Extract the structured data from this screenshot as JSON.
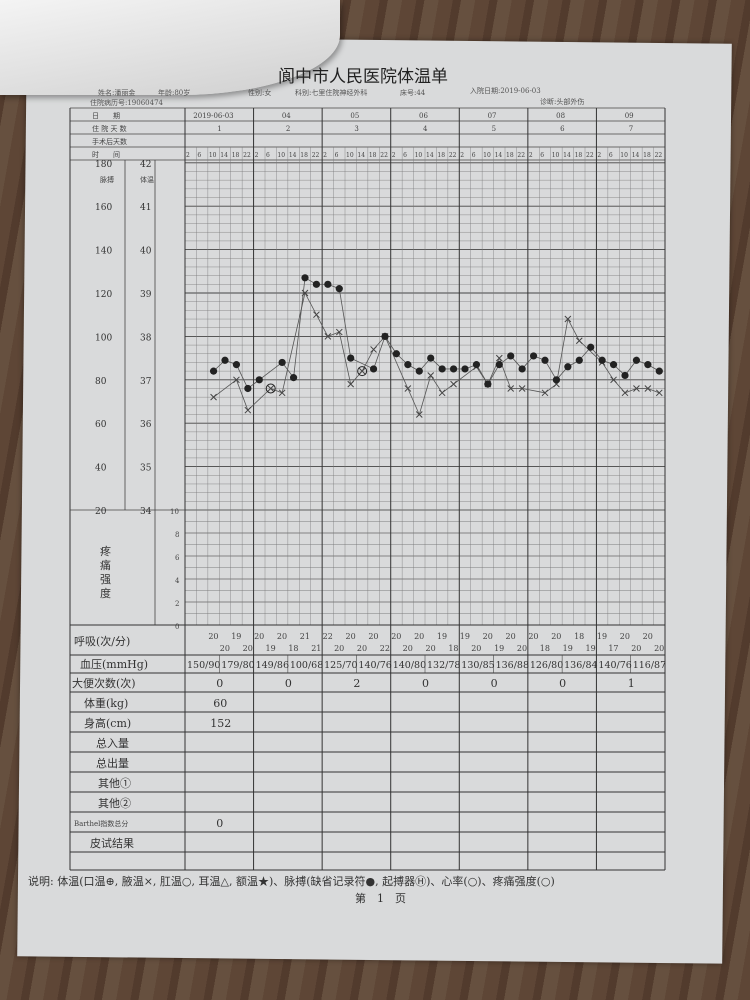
{
  "document": {
    "title": "阆中市人民医院体温单",
    "info": {
      "name": "姓名:潘丽金",
      "age": "年龄:80岁",
      "gender": "性别:女",
      "department": "科别:七里住院神经外科",
      "bed": "床号:44",
      "admission_date": "入院日期:2019-06-03",
      "record_no": "住院病历号:19060474",
      "diagnosis": "诊断:头部外伤"
    },
    "header_labels": {
      "date": "日　　期",
      "hospital_days": "住 院 天 数",
      "post_op_days": "手术后天数",
      "time": "时　　间",
      "pulse": "脉搏",
      "temperature": "体温"
    },
    "dates": [
      "2019-06-03",
      "04",
      "05",
      "06",
      "07",
      "08",
      "09"
    ],
    "hospital_days": [
      "1",
      "2",
      "3",
      "4",
      "5",
      "6",
      "7"
    ],
    "time_slots": [
      "2",
      "6",
      "10",
      "14",
      "18",
      "22"
    ],
    "pulse_axis": [
      "180",
      "160",
      "140",
      "120",
      "100",
      "80",
      "60",
      "40",
      "20"
    ],
    "temp_axis": [
      "42",
      "41",
      "40",
      "39",
      "38",
      "37",
      "36",
      "35",
      "34"
    ],
    "pain_axis": [
      "10",
      "8",
      "6",
      "4",
      "2",
      "0"
    ],
    "pain_label": "疼痛强度",
    "rows": {
      "respiration": "呼吸(次/分)",
      "blood_pressure": "血压(mmHg)",
      "stool": "大便次数(次)",
      "weight": "体重(kg)",
      "height": "身高(cm)",
      "intake": "总入量",
      "output": "总出量",
      "other1": "其他①",
      "other2": "其他②",
      "barthel": "Barthel指数总分",
      "skin_test": "皮试结果"
    },
    "respiration": [
      [
        "",
        "",
        "20",
        "20",
        "19",
        "20"
      ],
      [
        "20",
        "19",
        "20",
        "18",
        "21",
        "21"
      ],
      [
        "22",
        "20",
        "20",
        "20",
        "20",
        "22"
      ],
      [
        "20",
        "20",
        "20",
        "20",
        "19",
        "18"
      ],
      [
        "19",
        "20",
        "20",
        "19",
        "20",
        "20"
      ],
      [
        "20",
        "18",
        "20",
        "19",
        "18",
        "19"
      ],
      [
        "19",
        "17",
        "20",
        "20",
        "20",
        "20"
      ]
    ],
    "blood_pressure": [
      "150/90",
      "179/80",
      "149/86",
      "100/68",
      "125/70",
      "140/76",
      "140/80",
      "132/78",
      "130/85",
      "136/88",
      "126/80",
      "136/84",
      "140/76",
      "116/87"
    ],
    "stool": [
      "0",
      "0",
      "2",
      "0",
      "0",
      "0",
      "1"
    ],
    "weight": [
      "60",
      "",
      "",
      "",
      "",
      "",
      ""
    ],
    "height": [
      "152",
      "",
      "",
      "",
      "",
      "",
      ""
    ],
    "barthel": [
      "0",
      "",
      "",
      "",
      "",
      "",
      ""
    ],
    "legend": "说明: 体温(口温⊕, 腋温×, 肛温○, 耳温△, 额温★)、脉搏(缺省记录符●, 起搏器Ⓗ)、心率(○)、疼痛强度(○)",
    "page": "第　1　页"
  },
  "chart_data": {
    "type": "line",
    "x_label_note": "7 days × 6 time slots (2,6,10,14,18,22)",
    "temp_ylim": [
      34,
      42
    ],
    "pulse_ylim": [
      20,
      180
    ],
    "pain_ylim": [
      0,
      10
    ],
    "grid": true,
    "series": [
      {
        "marker": "x",
        "values": [
          null,
          null,
          36.6,
          null,
          37.0,
          36.3,
          null,
          36.8,
          36.7,
          null,
          39.0,
          38.5,
          38.0,
          38.1,
          36.9,
          37.2,
          37.7,
          38.0,
          null,
          36.8,
          36.2,
          37.1,
          36.7,
          36.9,
          null,
          37.3,
          36.9,
          37.5,
          36.8,
          36.8,
          null,
          36.7,
          36.9,
          38.4,
          37.9,
          null,
          37.4,
          37.0,
          36.7,
          36.8,
          36.8,
          36.7
        ],
        "circled_indices": [
          7,
          15
        ],
        "color": "#444444"
      },
      {
        "marker": "dot",
        "values": [
          null,
          null,
          84,
          89,
          87,
          76,
          80,
          null,
          88,
          81,
          127,
          124,
          124,
          122,
          90,
          null,
          85,
          100,
          92,
          87,
          84,
          90,
          85,
          85,
          85,
          87,
          78,
          87,
          91,
          85,
          91,
          89,
          80,
          86,
          89,
          95,
          89,
          87,
          82,
          89,
          87,
          84
        ],
        "color": "#222222"
      }
    ]
  }
}
